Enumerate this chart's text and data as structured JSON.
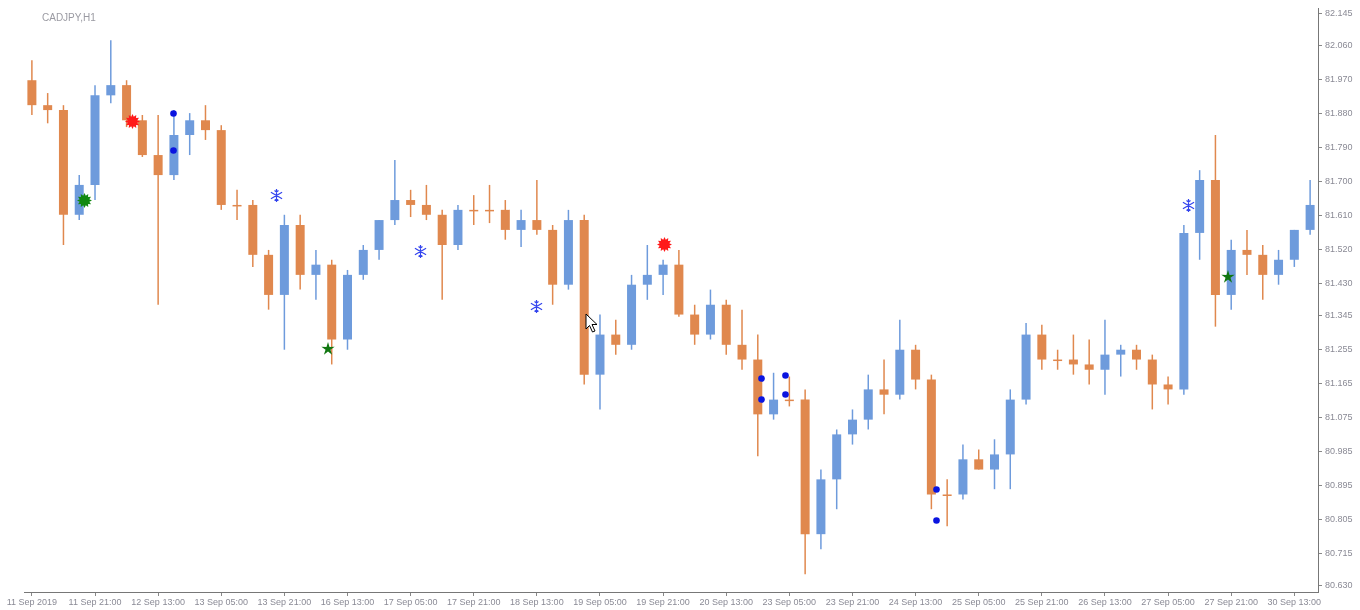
{
  "chart_data": {
    "type": "candlestick",
    "title": "CADJPY,H1",
    "categories": [
      "11 Sep 2019",
      null,
      null,
      null,
      "11 Sep 21:00",
      null,
      null,
      null,
      "12 Sep 13:00",
      null,
      null,
      null,
      "13 Sep 05:00",
      null,
      null,
      null,
      "13 Sep 21:00",
      null,
      null,
      null,
      "16 Sep 13:00",
      null,
      null,
      null,
      "17 Sep 05:00",
      null,
      null,
      null,
      "17 Sep 21:00",
      null,
      null,
      null,
      "18 Sep 13:00",
      null,
      null,
      null,
      "19 Sep 05:00",
      null,
      null,
      null,
      "19 Sep 21:00",
      null,
      null,
      null,
      "20 Sep 13:00",
      null,
      null,
      null,
      "23 Sep 05:00",
      null,
      null,
      null,
      "23 Sep 21:00",
      null,
      null,
      null,
      "24 Sep 13:00",
      null,
      null,
      null,
      "25 Sep 05:00",
      null,
      null,
      null,
      "25 Sep 21:00",
      null,
      null,
      null,
      "26 Sep 13:00",
      null,
      null,
      null,
      "27 Sep 05:00",
      null,
      null,
      null,
      "27 Sep 21:00",
      null,
      null,
      null,
      "30 Sep 13:00",
      null
    ],
    "ohlc": [
      [
        81.968,
        82.021,
        81.876,
        81.902
      ],
      [
        81.902,
        81.934,
        81.854,
        81.889
      ],
      [
        81.889,
        81.902,
        81.532,
        81.612
      ],
      [
        81.612,
        81.717,
        81.598,
        81.691
      ],
      [
        81.691,
        81.955,
        81.651,
        81.928
      ],
      [
        81.928,
        82.074,
        81.907,
        81.955
      ],
      [
        81.955,
        81.968,
        81.844,
        81.862
      ],
      [
        81.862,
        81.876,
        81.765,
        81.77
      ],
      [
        81.77,
        81.876,
        81.374,
        81.717
      ],
      [
        81.717,
        81.889,
        81.704,
        81.823
      ],
      [
        81.823,
        81.881,
        81.77,
        81.862
      ],
      [
        81.862,
        81.902,
        81.81,
        81.836
      ],
      [
        81.836,
        81.849,
        81.625,
        81.638
      ],
      [
        81.638,
        81.678,
        81.598,
        81.638
      ],
      [
        81.638,
        81.651,
        81.474,
        81.506
      ],
      [
        81.506,
        81.519,
        81.361,
        81.4
      ],
      [
        81.4,
        81.612,
        81.255,
        81.585
      ],
      [
        81.585,
        81.612,
        81.414,
        81.453
      ],
      [
        81.453,
        81.519,
        81.387,
        81.48
      ],
      [
        81.48,
        81.493,
        81.216,
        81.282
      ],
      [
        81.282,
        81.466,
        81.255,
        81.453
      ],
      [
        81.453,
        81.532,
        81.44,
        81.519
      ],
      [
        81.519,
        81.598,
        81.493,
        81.598
      ],
      [
        81.598,
        81.757,
        81.585,
        81.651
      ],
      [
        81.651,
        81.678,
        81.606,
        81.638
      ],
      [
        81.638,
        81.691,
        81.598,
        81.612
      ],
      [
        81.612,
        81.625,
        81.387,
        81.532
      ],
      [
        81.532,
        81.638,
        81.519,
        81.625
      ],
      [
        81.625,
        81.664,
        81.585,
        81.625
      ],
      [
        81.625,
        81.691,
        81.59,
        81.625
      ],
      [
        81.625,
        81.651,
        81.546,
        81.572
      ],
      [
        81.572,
        81.625,
        81.527,
        81.598
      ],
      [
        81.598,
        81.704,
        81.559,
        81.572
      ],
      [
        81.572,
        81.585,
        81.374,
        81.427
      ],
      [
        81.427,
        81.625,
        81.414,
        81.598
      ],
      [
        81.598,
        81.612,
        81.163,
        81.189
      ],
      [
        81.189,
        81.348,
        81.097,
        81.295
      ],
      [
        81.295,
        81.334,
        81.242,
        81.268
      ],
      [
        81.268,
        81.453,
        81.255,
        81.427
      ],
      [
        81.427,
        81.532,
        81.387,
        81.453
      ],
      [
        81.453,
        81.493,
        81.4,
        81.48
      ],
      [
        81.48,
        81.519,
        81.342,
        81.348
      ],
      [
        81.348,
        81.374,
        81.268,
        81.295
      ],
      [
        81.295,
        81.414,
        81.282,
        81.374
      ],
      [
        81.374,
        81.387,
        81.242,
        81.268
      ],
      [
        81.268,
        81.361,
        81.202,
        81.229
      ],
      [
        81.229,
        81.295,
        80.973,
        81.084
      ],
      [
        81.084,
        81.194,
        81.07,
        81.123
      ],
      [
        81.123,
        81.184,
        81.105,
        81.123
      ],
      [
        81.123,
        81.15,
        80.661,
        80.767
      ],
      [
        80.767,
        80.938,
        80.727,
        80.912
      ],
      [
        80.912,
        81.044,
        80.833,
        81.031
      ],
      [
        81.031,
        81.097,
        81.004,
        81.07
      ],
      [
        81.07,
        81.189,
        81.044,
        81.15
      ],
      [
        81.15,
        81.229,
        81.084,
        81.136
      ],
      [
        81.136,
        81.334,
        81.123,
        81.255
      ],
      [
        81.255,
        81.268,
        81.15,
        81.176
      ],
      [
        81.176,
        81.189,
        80.833,
        80.872
      ],
      [
        80.872,
        80.912,
        80.788,
        80.872
      ],
      [
        80.872,
        81.004,
        80.859,
        80.965
      ],
      [
        80.965,
        80.991,
        80.938,
        80.938
      ],
      [
        80.938,
        81.018,
        80.886,
        80.978
      ],
      [
        80.978,
        81.15,
        80.886,
        81.123
      ],
      [
        81.123,
        81.326,
        81.11,
        81.295
      ],
      [
        81.295,
        81.321,
        81.202,
        81.229
      ],
      [
        81.229,
        81.255,
        81.202,
        81.229
      ],
      [
        81.229,
        81.295,
        81.189,
        81.216
      ],
      [
        81.216,
        81.282,
        81.163,
        81.202
      ],
      [
        81.202,
        81.334,
        81.136,
        81.242
      ],
      [
        81.242,
        81.268,
        81.184,
        81.255
      ],
      [
        81.255,
        81.268,
        81.202,
        81.229
      ],
      [
        81.229,
        81.242,
        81.097,
        81.163
      ],
      [
        81.163,
        81.184,
        81.11,
        81.15
      ],
      [
        81.15,
        81.585,
        81.136,
        81.564
      ],
      [
        81.564,
        81.73,
        81.493,
        81.704
      ],
      [
        81.704,
        81.823,
        81.316,
        81.4
      ],
      [
        81.4,
        81.546,
        81.361,
        81.519
      ],
      [
        81.519,
        81.572,
        81.453,
        81.506
      ],
      [
        81.506,
        81.532,
        81.387,
        81.453
      ],
      [
        81.453,
        81.519,
        81.427,
        81.493
      ],
      [
        81.493,
        81.572,
        81.474,
        81.572
      ],
      [
        81.572,
        81.704,
        81.559,
        81.638
      ]
    ],
    "colors": [
      "#e0884e",
      "#e0884e",
      "#e0884e",
      "#6e9bdc",
      "#6e9bdc",
      "#6e9bdc",
      "#e0884e",
      "#e0884e",
      "#e0884e",
      "#6e9bdc",
      "#6e9bdc",
      "#e0884e",
      "#e0884e",
      "#e0884e",
      "#e0884e",
      "#e0884e",
      "#6e9bdc",
      "#e0884e",
      "#6e9bdc",
      "#e0884e",
      "#6e9bdc",
      "#6e9bdc",
      "#6e9bdc",
      "#6e9bdc",
      "#e0884e",
      "#e0884e",
      "#e0884e",
      "#6e9bdc",
      "#e0884e",
      "#e0884e",
      "#e0884e",
      "#6e9bdc",
      "#e0884e",
      "#e0884e",
      "#6e9bdc",
      "#e0884e",
      "#6e9bdc",
      "#e0884e",
      "#6e9bdc",
      "#6e9bdc",
      "#6e9bdc",
      "#e0884e",
      "#e0884e",
      "#6e9bdc",
      "#e0884e",
      "#e0884e",
      "#e0884e",
      "#6e9bdc",
      "#e0884e",
      "#e0884e",
      "#6e9bdc",
      "#6e9bdc",
      "#6e9bdc",
      "#6e9bdc",
      "#e0884e",
      "#6e9bdc",
      "#e0884e",
      "#e0884e",
      "#e0884e",
      "#6e9bdc",
      "#e0884e",
      "#6e9bdc",
      "#6e9bdc",
      "#6e9bdc",
      "#e0884e",
      "#e0884e",
      "#e0884e",
      "#e0884e",
      "#6e9bdc",
      "#6e9bdc",
      "#e0884e",
      "#e0884e",
      "#e0884e",
      "#6e9bdc",
      "#6e9bdc",
      "#e0884e",
      "#6e9bdc",
      "#e0884e",
      "#e0884e",
      "#6e9bdc",
      "#6e9bdc",
      "#6e9bdc"
    ],
    "ylim": [
      80.614,
      82.158
    ],
    "yticks": [
      82.145,
      {
        "value": 82.06,
        "label": "82.060"
      },
      {
        "value": 81.97,
        "label": "81.970"
      },
      {
        "value": 81.88,
        "label": "81.880"
      },
      {
        "value": 81.79,
        "label": "81.790"
      },
      {
        "value": 81.7,
        "label": "81.700"
      },
      {
        "value": 81.61,
        "label": "81.610"
      },
      {
        "value": 81.52,
        "label": "81.520"
      },
      {
        "value": 81.43,
        "label": "81.430"
      },
      81.345,
      81.255,
      81.165,
      81.075,
      80.985,
      80.895,
      80.805,
      80.715,
      {
        "value": 80.63,
        "label": "80.630"
      }
    ],
    "grid": false
  }
}
